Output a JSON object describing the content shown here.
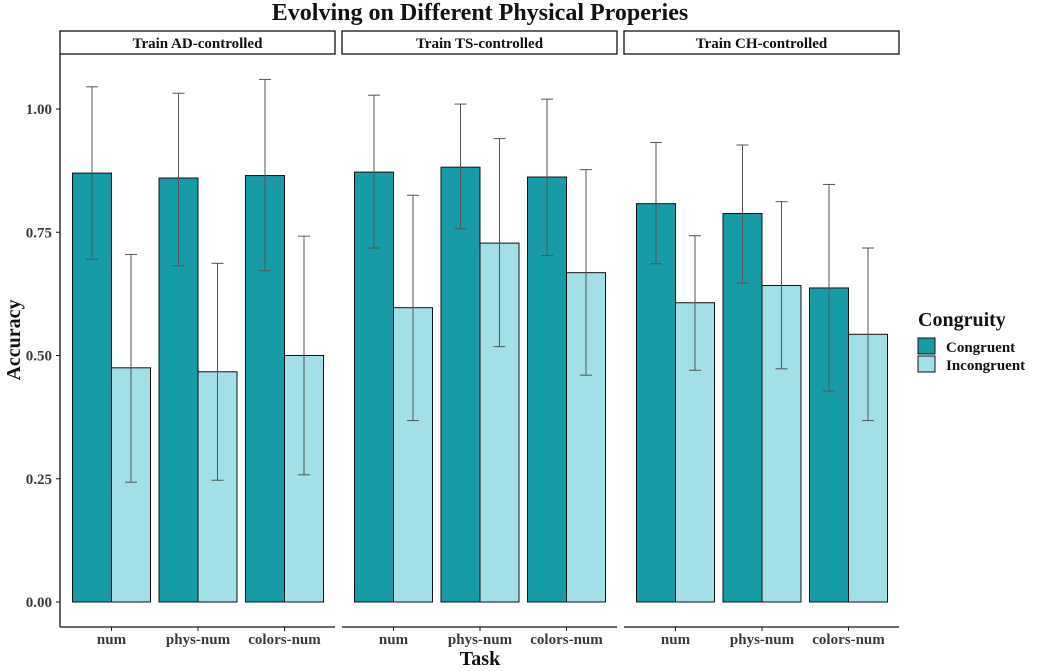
{
  "chart_data": {
    "type": "bar",
    "title": "Evolving on Different Physical Properies",
    "xlabel": "Task",
    "ylabel": "Accuracy",
    "ylim": [
      0,
      1.1
    ],
    "y_ticks": [
      "0.00",
      "0.25",
      "0.50",
      "0.75",
      "1.00"
    ],
    "categories": [
      "num",
      "phys-num",
      "colors-num"
    ],
    "legend": {
      "title": "Congruity",
      "placement": "right",
      "entries": [
        "Congruent",
        "Incongruent"
      ]
    },
    "colors": {
      "Congruent": "#179ba7",
      "Incongruent": "#a3dfe6"
    },
    "grid": false,
    "facets": [
      {
        "label": "Train AD-controlled",
        "series": [
          {
            "name": "Congruent",
            "values": [
              0.87,
              0.86,
              0.865
            ],
            "error_low": [
              0.695,
              0.682,
              0.672
            ],
            "error_high": [
              1.045,
              1.032,
              1.06
            ]
          },
          {
            "name": "Incongruent",
            "values": [
              0.475,
              0.467,
              0.5
            ],
            "error_low": [
              0.243,
              0.247,
              0.258
            ],
            "error_high": [
              0.705,
              0.687,
              0.742
            ]
          }
        ]
      },
      {
        "label": "Train TS-controlled",
        "series": [
          {
            "name": "Congruent",
            "values": [
              0.872,
              0.882,
              0.862
            ],
            "error_low": [
              0.718,
              0.757,
              0.703
            ],
            "error_high": [
              1.028,
              1.01,
              1.02
            ]
          },
          {
            "name": "Incongruent",
            "values": [
              0.597,
              0.728,
              0.668
            ],
            "error_low": [
              0.368,
              0.518,
              0.46
            ],
            "error_high": [
              0.825,
              0.94,
              0.877
            ]
          }
        ]
      },
      {
        "label": "Train CH-controlled",
        "series": [
          {
            "name": "Congruent",
            "values": [
              0.808,
              0.788,
              0.637
            ],
            "error_low": [
              0.686,
              0.647,
              0.428
            ],
            "error_high": [
              0.932,
              0.927,
              0.847
            ]
          },
          {
            "name": "Incongruent",
            "values": [
              0.607,
              0.642,
              0.543
            ],
            "error_low": [
              0.47,
              0.473,
              0.368
            ],
            "error_high": [
              0.743,
              0.812,
              0.718
            ]
          }
        ]
      }
    ]
  }
}
